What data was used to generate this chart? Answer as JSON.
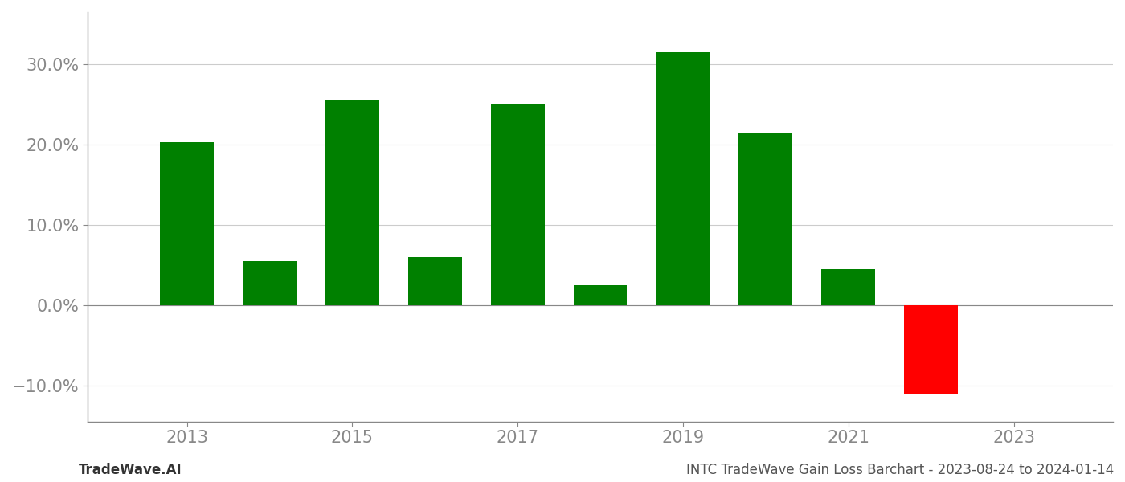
{
  "years": [
    2013,
    2014,
    2015,
    2016,
    2017,
    2018,
    2019,
    2020,
    2021,
    2022
  ],
  "values": [
    0.203,
    0.055,
    0.256,
    0.06,
    0.25,
    0.025,
    0.315,
    0.215,
    0.045,
    -0.11
  ],
  "bar_colors_positive": "#008000",
  "bar_colors_negative": "#ff0000",
  "background_color": "#ffffff",
  "grid_color": "#cccccc",
  "tick_color": "#888888",
  "footer_left": "TradeWave.AI",
  "footer_right": "INTC TradeWave Gain Loss Barchart - 2023-08-24 to 2024-01-14",
  "ylim": [
    -0.145,
    0.365
  ],
  "yticks": [
    -0.1,
    0.0,
    0.1,
    0.2,
    0.3
  ],
  "ytick_labels": [
    "−10.0%",
    "0.0%",
    "10.0%",
    "20.0%",
    "30.0%"
  ],
  "xticks": [
    2013,
    2015,
    2017,
    2019,
    2021,
    2023
  ],
  "xlim": [
    2011.8,
    2024.2
  ],
  "bar_width": 0.65,
  "tick_fontsize": 15,
  "footer_fontsize": 12,
  "spine_color": "#888888"
}
